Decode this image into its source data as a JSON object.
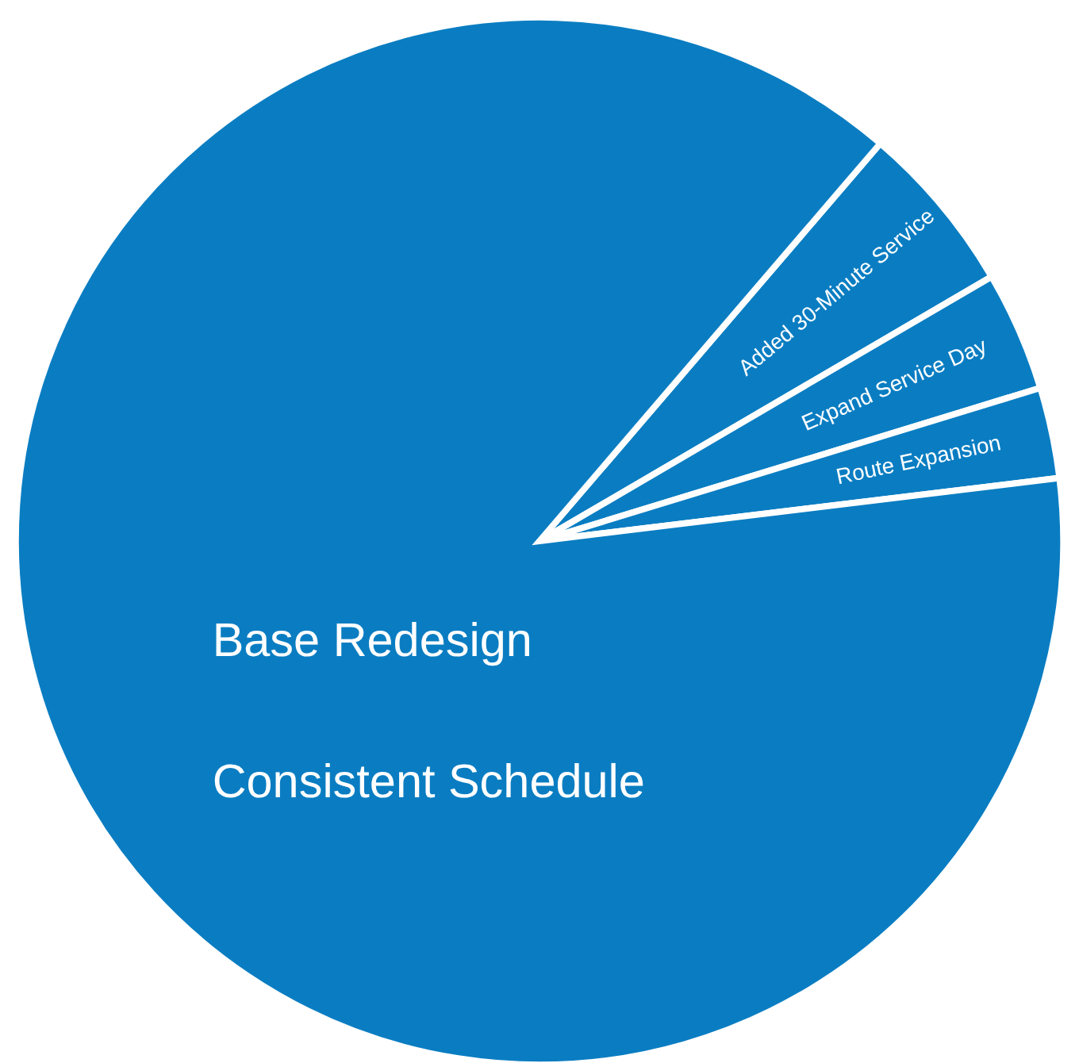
{
  "chart_data": {
    "type": "pie",
    "categories": [
      "Added 30-Minute Service",
      "Expand Service Day",
      "Route Expansion",
      "Base Redesign"
    ],
    "values": [
      5.3,
      3.7,
      2.8,
      88.2
    ],
    "colors": [
      "#0a7dc2",
      "#0a7dc2",
      "#0a7dc2",
      "#0a7dc2"
    ],
    "annotations": [
      "Consistent Schedule"
    ],
    "legend": false
  }
}
